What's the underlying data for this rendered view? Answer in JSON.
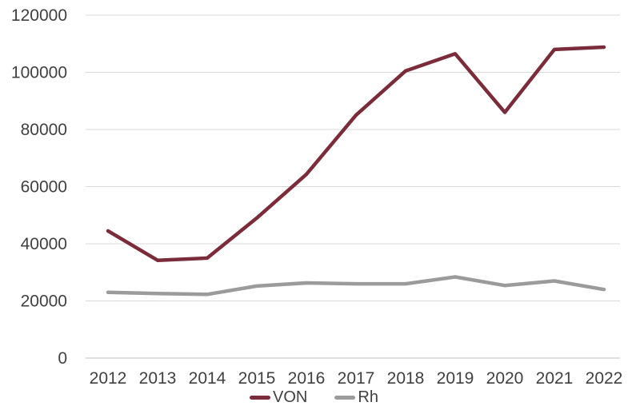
{
  "chart_data": {
    "type": "line",
    "title": "",
    "xlabel": "",
    "ylabel": "",
    "categories": [
      "2012",
      "2013",
      "2014",
      "2015",
      "2016",
      "2017",
      "2018",
      "2019",
      "2020",
      "2021",
      "2022"
    ],
    "series": [
      {
        "name": "VON",
        "color": "#7B2C3B",
        "values": [
          44500,
          34200,
          35000,
          49000,
          64300,
          85000,
          100500,
          106500,
          86000,
          108000,
          108800
        ]
      },
      {
        "name": "Rh",
        "color": "#9B9B9B",
        "values": [
          23000,
          22600,
          22300,
          25200,
          26300,
          26000,
          26000,
          28400,
          25400,
          27000,
          24000
        ]
      }
    ],
    "ylim": [
      0,
      120000
    ],
    "y_ticks": [
      0,
      20000,
      40000,
      60000,
      80000,
      100000,
      120000
    ],
    "grid": "horizontal",
    "legend_position": "bottom"
  },
  "colors": {
    "text": "#404040",
    "gridline": "#D9D9D9",
    "axis_line": "#BFBFBF",
    "background": "#FFFFFF"
  }
}
